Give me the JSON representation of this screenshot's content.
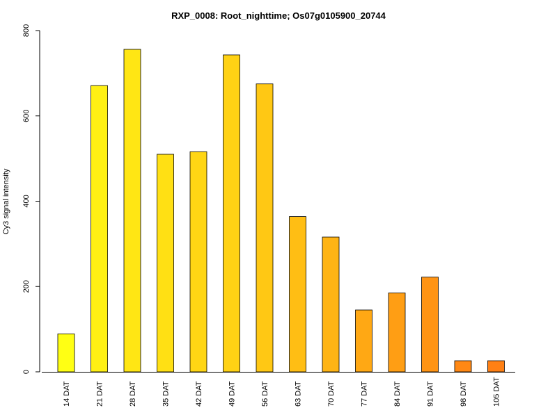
{
  "chart_data": {
    "type": "bar",
    "title": "RXP_0008: Root_nighttime; Os07g0105900_20744",
    "xlabel": "",
    "ylabel": "Cy3 signal intensity",
    "ylim": [
      0,
      800
    ],
    "yticks": [
      0,
      200,
      400,
      600,
      800
    ],
    "categories": [
      "14 DAT",
      "21 DAT",
      "28 DAT",
      "35 DAT",
      "42 DAT",
      "49 DAT",
      "56 DAT",
      "63 DAT",
      "70 DAT",
      "77 DAT",
      "84 DAT",
      "91 DAT",
      "98 DAT",
      "105 DAT"
    ],
    "values": [
      89,
      671,
      756,
      510,
      516,
      743,
      675,
      364,
      316,
      145,
      185,
      222,
      26,
      26
    ],
    "colors": [
      "#FFFF14",
      "#FFF014",
      "#FFE614",
      "#FFE014",
      "#FFD614",
      "#FFD214",
      "#FFC814",
      "#FFBE14",
      "#FFB414",
      "#FFA814",
      "#FF9E14",
      "#FF9414",
      "#FF8814",
      "#FF8014"
    ],
    "grid": false,
    "legend": "none"
  }
}
